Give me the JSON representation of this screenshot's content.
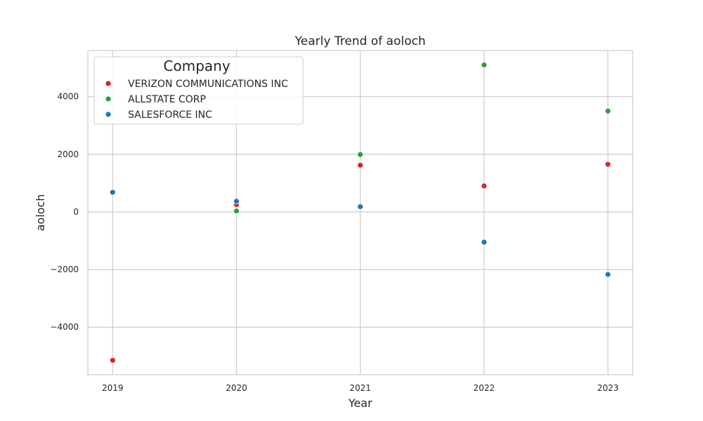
{
  "chart_data": {
    "type": "scatter",
    "title": "Yearly Trend of aoloch",
    "xlabel": "Year",
    "ylabel": "aoloch",
    "x": [
      2019,
      2020,
      2021,
      2022,
      2023
    ],
    "x_tick_labels": [
      "2019",
      "2020",
      "2021",
      "2022",
      "2023"
    ],
    "xlim": [
      2018.8,
      2023.2
    ],
    "ylim": [
      -5650,
      5600
    ],
    "y_ticks": [
      -4000,
      -2000,
      0,
      2000,
      4000
    ],
    "y_tick_labels": [
      "−4000",
      "−2000",
      "0",
      "2000",
      "4000"
    ],
    "grid": true,
    "legend": {
      "title": "Company",
      "placement": "top-left"
    },
    "series": [
      {
        "name": "VERIZON COMMUNICATIONS INC",
        "color": "#d62728",
        "points": [
          [
            2019,
            -5150
          ],
          [
            2020,
            250
          ],
          [
            2021,
            1620
          ],
          [
            2022,
            900
          ],
          [
            2023,
            1650
          ]
        ]
      },
      {
        "name": "ALLSTATE CORP",
        "color": "#2ca02c",
        "points": [
          [
            2020,
            30
          ],
          [
            2021,
            1990
          ],
          [
            2022,
            5100
          ],
          [
            2023,
            3500
          ]
        ]
      },
      {
        "name": "SALESFORCE INC",
        "color": "#1f77b4",
        "points": [
          [
            2019,
            680
          ],
          [
            2020,
            370
          ],
          [
            2021,
            180
          ],
          [
            2022,
            -1050
          ],
          [
            2023,
            -2170
          ]
        ]
      }
    ]
  }
}
